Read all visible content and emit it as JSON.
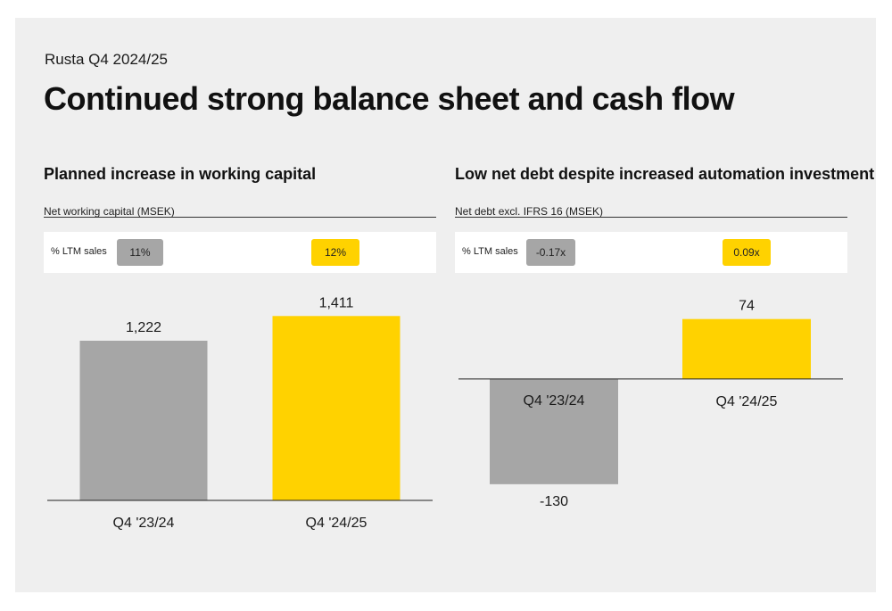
{
  "header": {
    "overline": "Rusta Q4 2024/25",
    "title": "Continued strong balance sheet and cash flow"
  },
  "colors": {
    "background": "#efefef",
    "previous": "#a6a6a6",
    "current": "#ffd200"
  },
  "panels": [
    {
      "title": "Planned increase in working capital",
      "subtitle": "Net working capital (MSEK)",
      "kpi": {
        "label": "% LTM sales",
        "prev": "11%",
        "curr": "12%"
      }
    },
    {
      "title": "Low net debt despite increased automation investment",
      "subtitle": "Net debt excl. IFRS 16 (MSEK)",
      "kpi": {
        "label": "% LTM sales",
        "prev": "-0.17x",
        "curr": "0.09x"
      }
    }
  ],
  "chart_data": [
    {
      "type": "bar",
      "categories": [
        "Q4 '23/24",
        "Q4 '24/25"
      ],
      "values": [
        1222,
        1411
      ],
      "value_labels": [
        "1,222",
        "1,411"
      ],
      "bar_colors": [
        "#a6a6a6",
        "#ffd200"
      ],
      "ylim": [
        0,
        1611
      ]
    },
    {
      "type": "bar",
      "categories": [
        "Q4 '23/24",
        "Q4 '24/25"
      ],
      "values": [
        -130,
        74
      ],
      "value_labels": [
        "-130",
        "74"
      ],
      "bar_colors": [
        "#a6a6a6",
        "#ffd200"
      ],
      "ylim": [
        -150,
        110
      ]
    }
  ]
}
